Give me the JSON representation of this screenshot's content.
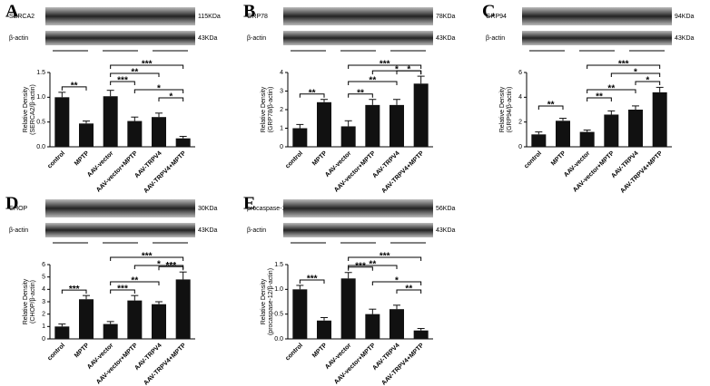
{
  "chart_data": [
    {
      "type": "bar",
      "panel": "A",
      "protein_label": "SERCA2",
      "protein_kda": "115KDa",
      "actin_label": "β-actin",
      "actin_kda": "43KDa",
      "y_label": [
        "Relative Density",
        "(SERCA2/β-actin)"
      ],
      "categories": [
        "control",
        "MPTP",
        "AAV-vector",
        "AAV-vector+MPTP",
        "AAV-TRPV4",
        "AAV-TRPV4+MPTP"
      ],
      "values": [
        1.0,
        0.47,
        1.02,
        0.52,
        0.6,
        0.17
      ],
      "errors": [
        0.1,
        0.05,
        0.12,
        0.08,
        0.08,
        0.04
      ],
      "ylim": [
        0,
        1.5
      ],
      "yticks": [
        {
          "value": 0,
          "label": "0.0"
        },
        0.5,
        {
          "value": 1,
          "label": "1.0"
        },
        1.5
      ],
      "comparisons": [
        {
          "groups": [
            "AAV-vector",
            "AAV-TRPV4+MPTP"
          ],
          "label": "***"
        },
        {
          "groups": [
            "AAV-vector",
            "AAV-TRPV4"
          ],
          "label": "**"
        },
        {
          "groups": [
            "AAV-vector",
            "AAV-vector+MPTP"
          ],
          "label": "***"
        },
        {
          "groups": [
            "AAV-vector+MPTP",
            "AAV-TRPV4+MPTP"
          ],
          "label": "*"
        },
        {
          "groups": [
            "AAV-TRPV4",
            "AAV-TRPV4+MPTP"
          ],
          "label": "*"
        },
        {
          "groups": [
            "control",
            "MPTP"
          ],
          "label": "**"
        }
      ]
    },
    {
      "type": "bar",
      "panel": "B",
      "protein_label": "GRP78",
      "protein_kda": "78KDa",
      "actin_label": "β-actin",
      "actin_kda": "43KDa",
      "y_label": [
        "Relative Density",
        "(GRP78/β-actin)"
      ],
      "categories": [
        "control",
        "MPTP",
        "AAV-vector",
        "AAV-vector+MPTP",
        "AAV-TRPV4",
        "AAV-TRPV4+MPTP"
      ],
      "values": [
        1.0,
        2.4,
        1.1,
        2.25,
        2.25,
        3.4
      ],
      "errors": [
        0.2,
        0.15,
        0.3,
        0.3,
        0.3,
        0.4
      ],
      "ylim": [
        0,
        4
      ],
      "yticks": [
        0,
        1,
        2,
        3,
        4
      ],
      "comparisons": [
        {
          "groups": [
            "AAV-vector",
            "AAV-TRPV4+MPTP"
          ],
          "label": "***"
        },
        {
          "groups": [
            "AAV-vector+MPTP",
            "AAV-TRPV4+MPTP"
          ],
          "label": "*"
        },
        {
          "groups": [
            "AAV-vector",
            "AAV-TRPV4"
          ],
          "label": "**"
        },
        {
          "groups": [
            "AAV-TRPV4",
            "AAV-TRPV4+MPTP"
          ],
          "label": "*"
        },
        {
          "groups": [
            "AAV-vector",
            "AAV-vector+MPTP"
          ],
          "label": "**"
        },
        {
          "groups": [
            "control",
            "MPTP"
          ],
          "label": "**"
        }
      ]
    },
    {
      "type": "bar",
      "panel": "C",
      "protein_label": "GRP94",
      "protein_kda": "94KDa",
      "actin_label": "β-actin",
      "actin_kda": "43KDa",
      "y_label": [
        "Relative Density",
        "(GRP94/β-actin)"
      ],
      "categories": [
        "control",
        "MPTP",
        "AAV-vector",
        "AAV-vector+MPTP",
        "AAV-TRPV4",
        "AAV-TRPV4+MPTP"
      ],
      "values": [
        1.0,
        2.1,
        1.2,
        2.6,
        3.0,
        4.4
      ],
      "errors": [
        0.2,
        0.2,
        0.15,
        0.3,
        0.3,
        0.4
      ],
      "ylim": [
        0,
        6
      ],
      "yticks": [
        0,
        2,
        4,
        6
      ],
      "comparisons": [
        {
          "groups": [
            "AAV-vector",
            "AAV-TRPV4+MPTP"
          ],
          "label": "***"
        },
        {
          "groups": [
            "AAV-vector+MPTP",
            "AAV-TRPV4+MPTP"
          ],
          "label": "*"
        },
        {
          "groups": [
            "AAV-TRPV4",
            "AAV-TRPV4+MPTP"
          ],
          "label": "*"
        },
        {
          "groups": [
            "AAV-vector",
            "AAV-TRPV4"
          ],
          "label": "**"
        },
        {
          "groups": [
            "AAV-vector",
            "AAV-vector+MPTP"
          ],
          "label": "**"
        },
        {
          "groups": [
            "control",
            "MPTP"
          ],
          "label": "**"
        }
      ]
    },
    {
      "type": "bar",
      "panel": "D",
      "protein_label": "CHOP",
      "protein_kda": "30KDa",
      "actin_label": "β-actin",
      "actin_kda": "43KDa",
      "y_label": [
        "Relative Density",
        "(CHOP/β-actin)"
      ],
      "categories": [
        "control",
        "MPTP",
        "AAV-vector",
        "AAV-vector+MPTP",
        "AAV-TRPV4",
        "AAV-TRPV4+MPTP"
      ],
      "values": [
        1.0,
        3.2,
        1.2,
        3.1,
        2.8,
        4.8
      ],
      "errors": [
        0.2,
        0.3,
        0.2,
        0.4,
        0.2,
        0.6
      ],
      "ylim": [
        0,
        6
      ],
      "yticks": [
        0,
        1,
        2,
        3,
        4,
        5,
        6
      ],
      "comparisons": [
        {
          "groups": [
            "AAV-vector",
            "AAV-TRPV4+MPTP"
          ],
          "label": "***"
        },
        {
          "groups": [
            "AAV-vector+MPTP",
            "AAV-TRPV4+MPTP"
          ],
          "label": "*"
        },
        {
          "groups": [
            "AAV-TRPV4",
            "AAV-TRPV4+MPTP"
          ],
          "label": "***"
        },
        {
          "groups": [
            "AAV-vector",
            "AAV-TRPV4"
          ],
          "label": "**"
        },
        {
          "groups": [
            "AAV-vector",
            "AAV-vector+MPTP"
          ],
          "label": "***"
        },
        {
          "groups": [
            "control",
            "MPTP"
          ],
          "label": "***"
        }
      ]
    },
    {
      "type": "bar",
      "panel": "E",
      "protein_label": "procaspase-12",
      "protein_kda": "56KDa",
      "actin_label": "β-actin",
      "actin_kda": "43KDa",
      "y_label": [
        "Relative Density",
        "(procaspase-12/β-actin)"
      ],
      "categories": [
        "control",
        "MPTP",
        "AAV-vector",
        "AAV-vector+MPTP",
        "AAV-TRPV4",
        "AAV-TRPV4+MPTP"
      ],
      "values": [
        1.0,
        0.37,
        1.22,
        0.5,
        0.6,
        0.17
      ],
      "errors": [
        0.08,
        0.06,
        0.12,
        0.1,
        0.08,
        0.04
      ],
      "ylim": [
        0,
        1.5
      ],
      "yticks": [
        {
          "value": 0,
          "label": "0.0"
        },
        0.5,
        {
          "value": 1,
          "label": "1.0"
        },
        1.5
      ],
      "comparisons": [
        {
          "groups": [
            "AAV-vector",
            "AAV-TRPV4+MPTP"
          ],
          "label": "***"
        },
        {
          "groups": [
            "AAV-vector",
            "AAV-TRPV4"
          ],
          "label": "**"
        },
        {
          "groups": [
            "AAV-vector",
            "AAV-vector+MPTP"
          ],
          "label": "***"
        },
        {
          "groups": [
            "AAV-vector+MPTP",
            "AAV-TRPV4+MPTP"
          ],
          "label": "*"
        },
        {
          "groups": [
            "AAV-TRPV4",
            "AAV-TRPV4+MPTP"
          ],
          "label": "**"
        },
        {
          "groups": [
            "control",
            "MPTP"
          ],
          "label": "***"
        }
      ]
    }
  ]
}
